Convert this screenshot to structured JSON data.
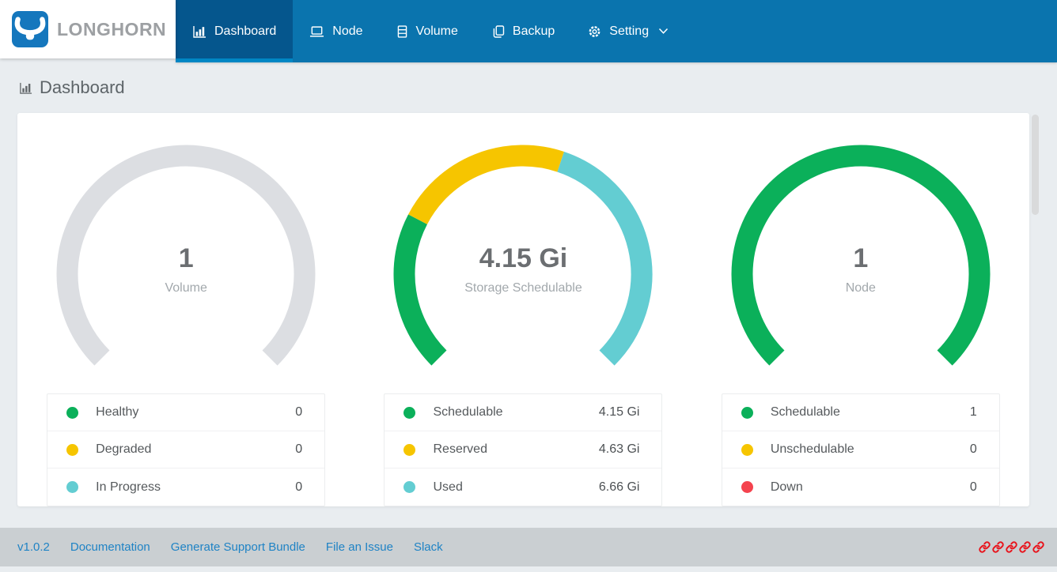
{
  "header": {
    "brand": "LONGHORN",
    "nav_items": [
      {
        "label": "Dashboard",
        "icon": "bar-chart-icon",
        "active": true
      },
      {
        "label": "Node",
        "icon": "laptop-icon",
        "active": false
      },
      {
        "label": "Volume",
        "icon": "storage-icon",
        "active": false
      },
      {
        "label": "Backup",
        "icon": "copy-icon",
        "active": false
      },
      {
        "label": "Setting",
        "icon": "gear-icon",
        "active": false,
        "dropdown": true
      }
    ]
  },
  "page": {
    "title": "Dashboard"
  },
  "chart_data": [
    {
      "type": "gauge",
      "name": "volume-gauge",
      "center_value": "1",
      "center_label": "Volume",
      "arc": {
        "start_angle": 225,
        "end_angle": -45,
        "stroke_width": 27
      },
      "segments": [
        {
          "label": "track",
          "value": 1,
          "color": "#dcdee2"
        }
      ],
      "legend": [
        {
          "label": "Healthy",
          "value": "0",
          "color": "#0bb05a"
        },
        {
          "label": "Degraded",
          "value": "0",
          "color": "#f6c500"
        },
        {
          "label": "In Progress",
          "value": "0",
          "color": "#63cdd2"
        }
      ]
    },
    {
      "type": "gauge",
      "name": "storage-gauge",
      "center_value": "4.15 Gi",
      "center_label": "Storage Schedulable",
      "arc": {
        "start_angle": 225,
        "end_angle": -45,
        "stroke_width": 27
      },
      "segments": [
        {
          "label": "Schedulable",
          "value": 4.15,
          "color": "#0bb05a"
        },
        {
          "label": "Reserved",
          "value": 4.63,
          "color": "#f6c500"
        },
        {
          "label": "Used",
          "value": 6.66,
          "color": "#63cdd2"
        }
      ],
      "legend": [
        {
          "label": "Schedulable",
          "value": "4.15 Gi",
          "color": "#0bb05a"
        },
        {
          "label": "Reserved",
          "value": "4.63 Gi",
          "color": "#f6c500"
        },
        {
          "label": "Used",
          "value": "6.66 Gi",
          "color": "#63cdd2"
        }
      ]
    },
    {
      "type": "gauge",
      "name": "node-gauge",
      "center_value": "1",
      "center_label": "Node",
      "arc": {
        "start_angle": 225,
        "end_angle": -45,
        "stroke_width": 27
      },
      "segments": [
        {
          "label": "Schedulable",
          "value": 1,
          "color": "#0bb05a"
        }
      ],
      "legend": [
        {
          "label": "Schedulable",
          "value": "1",
          "color": "#0bb05a"
        },
        {
          "label": "Unschedulable",
          "value": "0",
          "color": "#f6c500"
        },
        {
          "label": "Down",
          "value": "0",
          "color": "#f4434e"
        }
      ]
    }
  ],
  "footer": {
    "version": "v1.0.2",
    "links": [
      "Documentation",
      "Generate Support Bundle",
      "File an Issue",
      "Slack"
    ],
    "link_icon_count": 5
  },
  "theme": {
    "nav_blue": "#0a74ae",
    "nav_active_blue": "#05568d",
    "nav_active_underline": "#0086c4",
    "brand_blue": "#1577bd",
    "page_background": "#e9edf0",
    "footer_background": "#cacfd2",
    "footer_link_blue": "#1f83c5",
    "broken_link_red": "#e8131b"
  }
}
